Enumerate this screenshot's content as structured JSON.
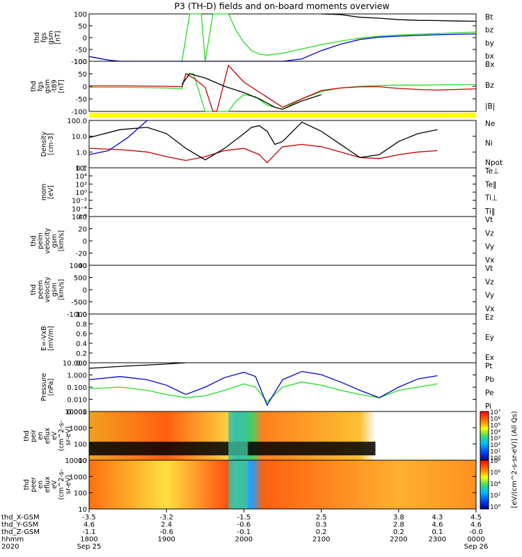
{
  "title": "P3 (TH-D) fields and on-board moments overview",
  "colors": {
    "black": "#000000",
    "red": "#c00000",
    "green": "#22dd22",
    "blue": "#0000cc",
    "yellow": "#ffff00",
    "maroon": "#8b1010"
  },
  "chart_data": [
    {
      "type": "line",
      "panel": "fgs-gsm",
      "ylabel": [
        "thd",
        "fgs",
        "gsm",
        "[nT]"
      ],
      "yticks": [
        "100",
        "50",
        "0",
        "-50",
        "-100"
      ],
      "ylim": [
        -100,
        100
      ],
      "series": [
        {
          "name": "Bt",
          "color": "#000000",
          "x": [
            0,
            5,
            10,
            15,
            20,
            30,
            40,
            45,
            48,
            50,
            55,
            60,
            65,
            70,
            75,
            80,
            85,
            90,
            95,
            100
          ],
          "y": [
            null,
            null,
            null,
            null,
            null,
            null,
            null,
            null,
            null,
            null,
            null,
            100,
            97,
            86,
            82,
            76,
            73,
            72,
            70,
            69
          ]
        },
        {
          "name": "bz",
          "color": "#c00000",
          "x": [
            0,
            20,
            40,
            60,
            80,
            100
          ],
          "y": [
            null,
            null,
            null,
            null,
            null,
            null
          ]
        },
        {
          "name": "by",
          "color": "#22dd22",
          "x": [
            24,
            26,
            27,
            29,
            30,
            32,
            34,
            36,
            38,
            40,
            42,
            44,
            46,
            50,
            55,
            60,
            65,
            70,
            75,
            80,
            85,
            90,
            95,
            100
          ],
          "y": [
            -100,
            100,
            100,
            100,
            -100,
            100,
            100,
            100,
            30,
            -20,
            -55,
            -70,
            -74,
            -66,
            -48,
            -30,
            -15,
            -2,
            6,
            11,
            14,
            17,
            21,
            23
          ]
        },
        {
          "name": "bx",
          "color": "#0000cc",
          "x": [
            0,
            5,
            8,
            10,
            44,
            50,
            55,
            60,
            65,
            70,
            75,
            80,
            85,
            90,
            95,
            100
          ],
          "y": [
            -80,
            -95,
            -100,
            -100,
            -100,
            -100,
            -90,
            -55,
            -28,
            -8,
            2,
            6,
            9,
            12,
            14,
            16
          ]
        }
      ]
    },
    {
      "type": "line",
      "panel": "fgs-tdas",
      "ylabel": [
        "thd",
        "fgs",
        "gsm",
        "-t89",
        "[nT]"
      ],
      "yticks": [
        "100",
        "50",
        "0",
        "-50",
        "-100"
      ],
      "ylim": [
        -120,
        120
      ],
      "series": [
        {
          "name": "Bx",
          "color": "#22dd22",
          "x": [
            0,
            10,
            20,
            24,
            25,
            27,
            30,
            33,
            36,
            38,
            40,
            43,
            46,
            50,
            55,
            60,
            65,
            70,
            75,
            80,
            85,
            90,
            95,
            100
          ],
          "y": [
            -5,
            -5,
            -8,
            -12,
            60,
            60,
            -120,
            -120,
            -120,
            -70,
            -40,
            -50,
            -90,
            -110,
            -60,
            -25,
            -8,
            0,
            4,
            6,
            6,
            7,
            8,
            8
          ]
        },
        {
          "name": "Bz",
          "color": "#c00000",
          "x": [
            0,
            10,
            20,
            24,
            25,
            27,
            30,
            32,
            33,
            36,
            40,
            45,
            50,
            55,
            60,
            65,
            70,
            75,
            80,
            85,
            90,
            95,
            100
          ],
          "y": [
            2,
            2,
            0,
            -2,
            60,
            40,
            -5,
            -120,
            -120,
            100,
            20,
            -40,
            -100,
            -60,
            -20,
            -8,
            -2,
            -2,
            -10,
            -15,
            -18,
            -15,
            -12
          ]
        },
        {
          "name": "|B|",
          "color": "#000000",
          "x": [
            24,
            26,
            30,
            35,
            40,
            44,
            48,
            50,
            55,
            60
          ],
          "y": [
            10,
            60,
            40,
            0,
            -30,
            -60,
            -100,
            -110,
            -70,
            -40
          ]
        }
      ]
    },
    {
      "type": "line",
      "panel": "density",
      "ylabel": [
        "Density",
        "[cm-3]"
      ],
      "yticks": [
        "100.0",
        "10.0",
        "1.0",
        "0.1"
      ],
      "yscale": "log",
      "ylim": [
        0.05,
        200
      ],
      "series": [
        {
          "name": "Ne",
          "color": "#c00000",
          "x": [
            0,
            8,
            15,
            20,
            25,
            30,
            35,
            40,
            44,
            46,
            48,
            50,
            55,
            60,
            65,
            70,
            75,
            80,
            85,
            90
          ],
          "y": [
            1.5,
            1.2,
            0.8,
            0.35,
            0.18,
            0.35,
            1.0,
            1.5,
            0.5,
            0.12,
            0.5,
            2.0,
            3.0,
            2.0,
            0.8,
            0.3,
            0.25,
            0.5,
            0.8,
            1.0
          ]
        },
        {
          "name": "Ni",
          "color": "#000000",
          "x": [
            0,
            8,
            15,
            20,
            25,
            30,
            35,
            40,
            42,
            44,
            46,
            48,
            50,
            55,
            60,
            65,
            70,
            75,
            80,
            85,
            90
          ],
          "y": [
            10,
            40,
            60,
            20,
            1.5,
            0.2,
            1.5,
            20,
            60,
            80,
            30,
            3.0,
            5.0,
            150,
            30,
            3,
            0.3,
            0.5,
            5,
            20,
            40
          ]
        },
        {
          "name": "Npot",
          "color": "#0000cc",
          "x": [
            0,
            5,
            10,
            15
          ],
          "y": [
            0.5,
            1.0,
            10,
            200
          ]
        }
      ]
    },
    {
      "type": "line",
      "panel": "mom-temp",
      "ylabel": [
        "mom",
        "[eV]"
      ],
      "yticks": [
        "10^6",
        "10^4",
        "10^2",
        "10^0",
        "10^-2",
        "10^-4",
        "10^-6"
      ],
      "yscale": "log",
      "series": [
        {
          "name": "Te⊥",
          "color": "#c00000"
        },
        {
          "name": "Te‖",
          "color": "#000000"
        },
        {
          "name": "Ti⊥",
          "color": "#0000cc"
        },
        {
          "name": "Ti‖",
          "color": "#22dd22"
        }
      ]
    },
    {
      "type": "line",
      "panel": "peim-velocity",
      "ylabel": [
        "thd",
        "peim",
        "velocity",
        "gsm",
        "[km/s]"
      ],
      "yticks": [
        "40",
        "20",
        "0",
        "-20",
        "-40"
      ],
      "ylim": [
        -40,
        40
      ],
      "series": [
        {
          "name": "Vt",
          "color": "#000000"
        },
        {
          "name": "Vz",
          "color": "#c00000"
        },
        {
          "name": "Vy",
          "color": "#22dd22"
        },
        {
          "name": "Vx",
          "color": "#0000cc"
        }
      ]
    },
    {
      "type": "line",
      "panel": "peem-velocity",
      "ylabel": [
        "thd",
        "peem",
        "velocity",
        "gsm",
        "[km/s]"
      ],
      "yticks": [
        "1000",
        "500",
        "0",
        "-500",
        "-1000"
      ],
      "ylim": [
        -1000,
        1000
      ],
      "series": [
        {
          "name": "Vt",
          "color": "#000000"
        },
        {
          "name": "Vz",
          "color": "#c00000"
        },
        {
          "name": "Vy",
          "color": "#22dd22"
        },
        {
          "name": "Vx",
          "color": "#0000cc"
        }
      ]
    },
    {
      "type": "line",
      "panel": "efield",
      "ylabel": [
        "E=-VxB",
        "[mV/m]"
      ],
      "yticks": [
        "1.0",
        "0.8",
        "0.6",
        "0.4",
        "0.2",
        "0.0"
      ],
      "ylim": [
        0,
        1
      ],
      "series": [
        {
          "name": "Ez",
          "color": "#c00000"
        },
        {
          "name": "Ey",
          "color": "#22dd22"
        },
        {
          "name": "Ex",
          "color": "#0000cc"
        }
      ]
    },
    {
      "type": "line",
      "panel": "pressure",
      "ylabel": [
        "Pressure",
        "[nPa]"
      ],
      "yticks": [
        "10.000",
        "1.000",
        "0.100",
        "0.010",
        "0.001"
      ],
      "yscale": "log",
      "ylim": [
        0.0005,
        20
      ],
      "series": [
        {
          "name": "Pt",
          "color": "#000000",
          "x": [
            0,
            10,
            20,
            25
          ],
          "y": [
            6,
            10,
            15,
            20
          ]
        },
        {
          "name": "Pb",
          "color": "#c00000",
          "x": [
            0,
            100
          ],
          "y": [
            null,
            null
          ]
        },
        {
          "name": "Pe",
          "color": "#22dd22",
          "x": [
            0,
            8,
            15,
            20,
            25,
            30,
            35,
            40,
            43,
            46,
            50,
            55,
            60,
            65,
            70,
            75,
            80,
            85,
            90
          ],
          "y": [
            0.07,
            0.1,
            0.05,
            0.02,
            0.01,
            0.015,
            0.05,
            0.2,
            0.1,
            0.004,
            0.1,
            0.3,
            0.15,
            0.05,
            0.02,
            0.01,
            0.05,
            0.1,
            0.2
          ]
        },
        {
          "name": "Pi",
          "color": "#0000cc",
          "x": [
            0,
            8,
            15,
            20,
            25,
            30,
            35,
            40,
            43,
            46,
            50,
            55,
            60,
            65,
            70,
            75,
            80,
            85,
            90
          ],
          "y": [
            0.5,
            1.0,
            0.5,
            0.15,
            0.02,
            0.1,
            0.8,
            2.5,
            1.0,
            0.002,
            0.5,
            3.0,
            1.5,
            0.3,
            0.05,
            0.01,
            0.1,
            0.6,
            1.2
          ]
        }
      ]
    },
    {
      "type": "heatmap",
      "panel": "peir",
      "ylabel": [
        "thd",
        "peir",
        "en",
        "eflux",
        "eV",
        "(cm^2-s-",
        "sr-eV)"
      ],
      "yticks": [
        "10000",
        "1000",
        "100",
        "10"
      ],
      "yscale": "log"
    },
    {
      "type": "heatmap",
      "panel": "peer",
      "ylabel": [
        "thd",
        "peer",
        "en",
        "eflux",
        "eV",
        "(cm^2-s-",
        "sr-eV)"
      ],
      "yticks": [
        "10000",
        "1000",
        "100",
        "10"
      ],
      "yscale": "log"
    }
  ],
  "colorbar": {
    "label": "[eV/(cm^2-s-sr-eV)] (All Qs)",
    "ticks_upper": [
      "10^7",
      "10^6",
      "10^5",
      "10^4",
      "10^3",
      "10^2",
      "10^1",
      "10^0"
    ],
    "ticks_lower": [
      "10^8",
      "10^6",
      "10^4",
      "10^2",
      "10^0"
    ]
  },
  "xaxis": {
    "rows": [
      {
        "label": "thd_X-GSM",
        "values": [
          "-3.5",
          "-3.2",
          "-1.5",
          "2.5",
          "3.8",
          "4.3",
          "4.5"
        ]
      },
      {
        "label": "thd_Y-GSM",
        "values": [
          "4.6",
          "2.4",
          "-0.6",
          "0.3",
          "2.8",
          "4.6",
          "4.6"
        ]
      },
      {
        "label": "thd_Z-GSM",
        "values": [
          "-1.1",
          "-0.6",
          "-0.1",
          "0.2",
          "0.2",
          "0.1",
          "-0.0"
        ]
      },
      {
        "label": "hhmm",
        "values": [
          "1800",
          "1900",
          "2000",
          "2100",
          "2200",
          "2300",
          "0000"
        ]
      },
      {
        "label": "2020",
        "values": [
          "Sep 25",
          "",
          "",
          "",
          "",
          "",
          "Sep 26"
        ]
      }
    ]
  }
}
